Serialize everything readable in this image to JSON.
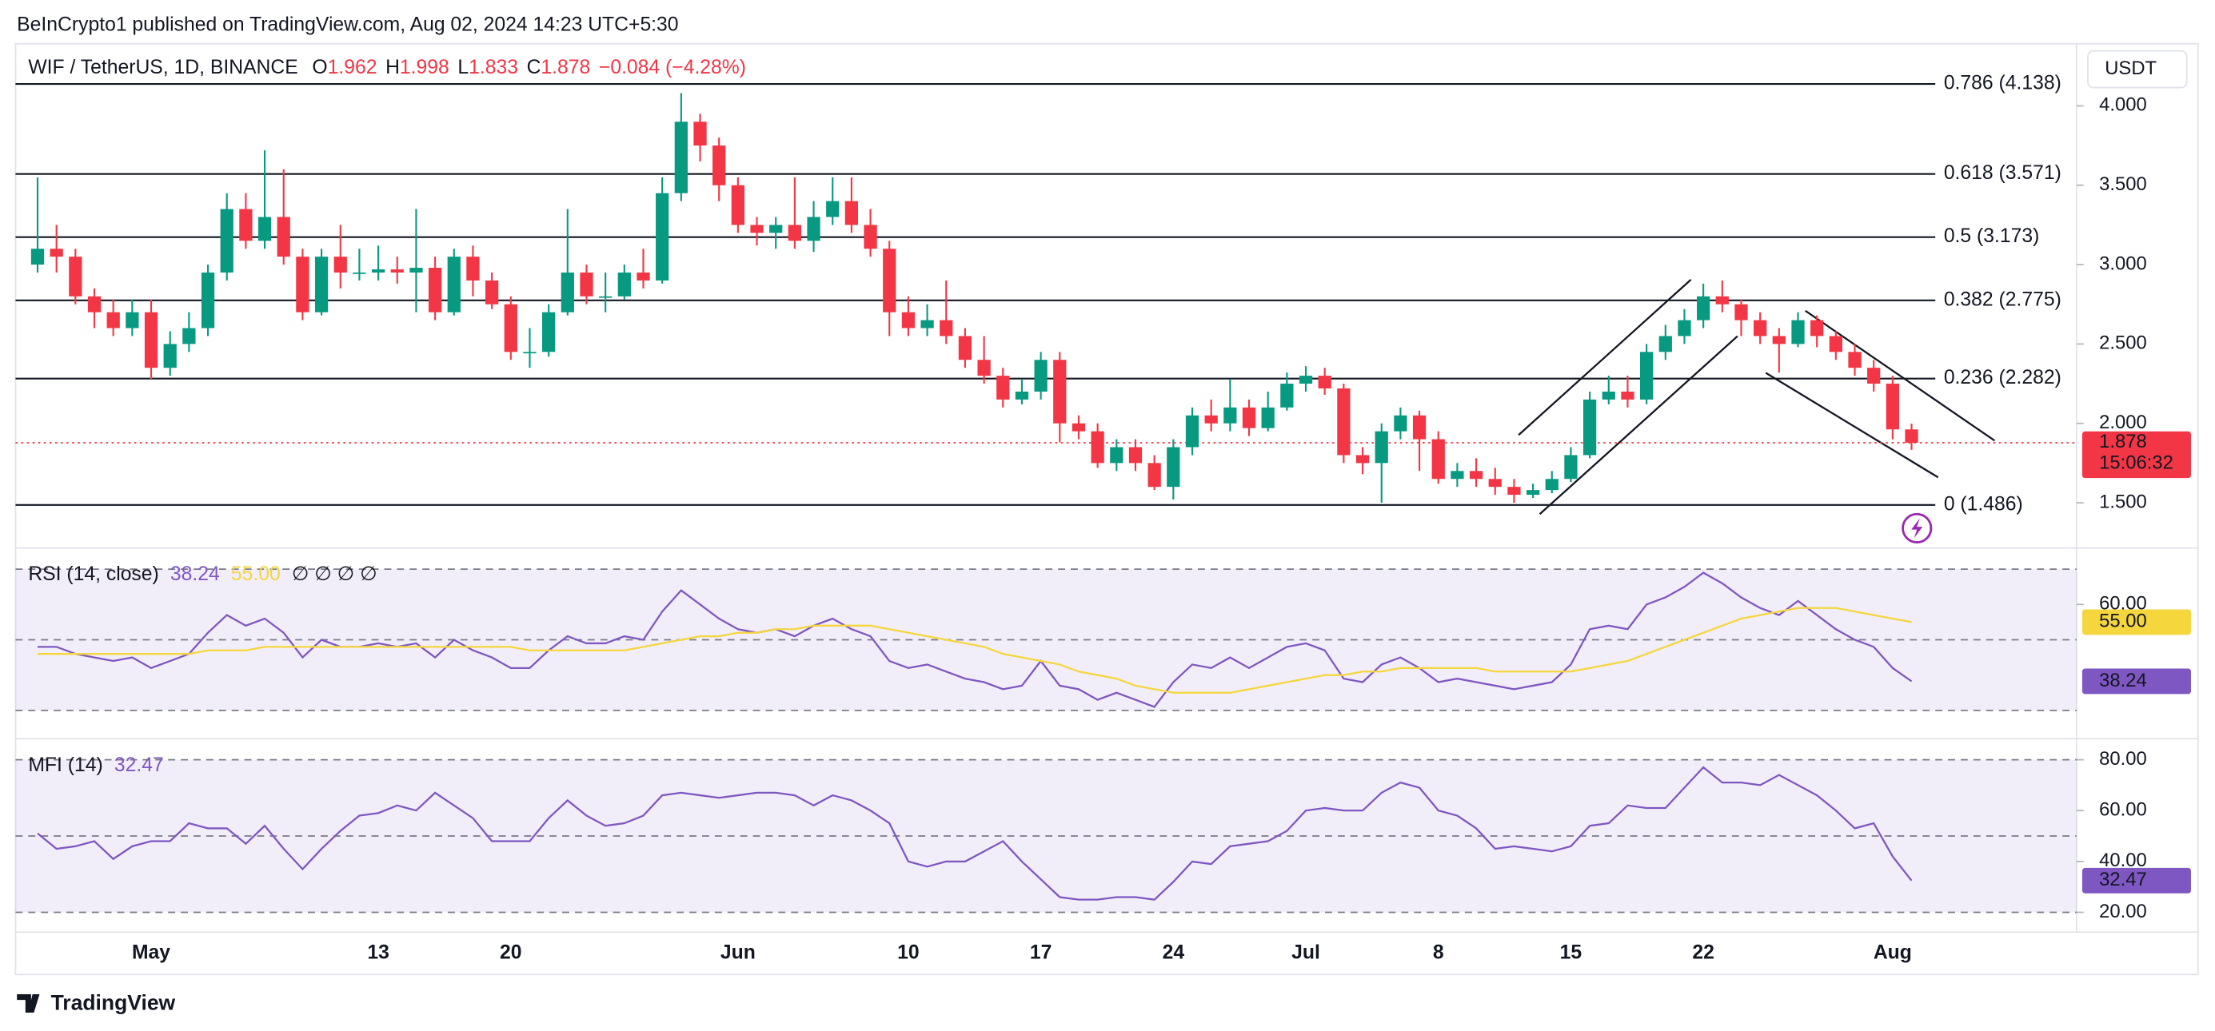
{
  "header": "BeInCrypto1 published on TradingView.com, Aug 02, 2024 14:23 UTC+5:30",
  "footer": "TradingView",
  "chart_data": {
    "type": "candlestick",
    "symbol": "WIF / TetherUS, 1D, BINANCE",
    "ohlc_labels": [
      "O",
      "H",
      "L",
      "C"
    ],
    "change_label": "−0.084 (−4.28%)",
    "currency": "USDT",
    "countdown": "15:06:32",
    "up_color": "#089981",
    "down_color": "#f23645",
    "categories": [
      null,
      null,
      null,
      null,
      null,
      null,
      "May",
      null,
      null,
      null,
      null,
      null,
      null,
      null,
      null,
      null,
      null,
      null,
      "13",
      null,
      null,
      null,
      null,
      null,
      null,
      "20",
      null,
      null,
      null,
      null,
      null,
      null,
      null,
      null,
      null,
      null,
      null,
      "Jun",
      null,
      null,
      null,
      null,
      null,
      null,
      null,
      null,
      "10",
      null,
      null,
      null,
      null,
      null,
      null,
      "17",
      null,
      null,
      null,
      null,
      null,
      null,
      "24",
      null,
      null,
      null,
      null,
      null,
      null,
      "Jul",
      null,
      null,
      null,
      null,
      null,
      null,
      "8",
      null,
      null,
      null,
      null,
      null,
      null,
      "15",
      null,
      null,
      null,
      null,
      null,
      null,
      "22",
      null,
      null,
      null,
      null,
      null,
      null,
      null,
      null,
      null,
      "Aug",
      null
    ],
    "open": [
      3.0,
      3.1,
      3.05,
      2.8,
      2.7,
      2.6,
      2.7,
      2.35,
      2.5,
      2.6,
      2.95,
      3.35,
      3.15,
      3.3,
      3.05,
      2.7,
      3.05,
      2.95,
      2.95,
      2.97,
      2.95,
      2.98,
      2.7,
      3.05,
      2.9,
      2.75,
      2.45,
      2.45,
      2.7,
      2.95,
      2.8,
      2.8,
      2.95,
      2.9,
      3.45,
      3.9,
      3.75,
      3.5,
      3.25,
      3.2,
      3.25,
      3.15,
      3.3,
      3.4,
      3.25,
      3.1,
      2.7,
      2.6,
      2.65,
      2.55,
      2.4,
      2.3,
      2.15,
      2.2,
      2.4,
      2.0,
      1.95,
      1.75,
      1.85,
      1.75,
      1.6,
      1.85,
      2.05,
      2.0,
      2.1,
      1.97,
      2.1,
      2.25,
      2.3,
      2.22,
      1.8,
      1.75,
      1.95,
      2.05,
      1.9,
      1.65,
      1.7,
      1.65,
      1.6,
      1.55,
      1.58,
      1.65,
      1.8,
      2.15,
      2.2,
      2.15,
      2.45,
      2.55,
      2.65,
      2.8,
      2.75,
      2.65,
      2.55,
      2.5,
      2.65,
      2.55,
      2.45,
      2.35,
      2.25,
      1.962
    ],
    "high": [
      3.55,
      3.25,
      3.1,
      2.85,
      2.78,
      2.78,
      2.78,
      2.58,
      2.7,
      3.0,
      3.45,
      3.45,
      3.72,
      3.6,
      3.1,
      3.1,
      3.25,
      3.1,
      3.12,
      3.05,
      3.35,
      3.05,
      3.1,
      3.12,
      2.95,
      2.8,
      2.6,
      2.75,
      3.35,
      3.0,
      2.95,
      3.0,
      3.1,
      3.55,
      4.08,
      3.95,
      3.8,
      3.55,
      3.3,
      3.3,
      3.55,
      3.4,
      3.55,
      3.55,
      3.35,
      3.15,
      2.8,
      2.75,
      2.9,
      2.6,
      2.55,
      2.35,
      2.28,
      2.45,
      2.45,
      2.05,
      2.0,
      1.9,
      1.9,
      1.8,
      1.9,
      2.1,
      2.15,
      2.28,
      2.15,
      2.2,
      2.32,
      2.36,
      2.35,
      2.25,
      1.85,
      2.0,
      2.1,
      2.08,
      1.95,
      1.75,
      1.78,
      1.72,
      1.65,
      1.62,
      1.7,
      1.85,
      2.2,
      2.3,
      2.3,
      2.5,
      2.62,
      2.72,
      2.88,
      2.9,
      2.78,
      2.7,
      2.6,
      2.7,
      2.68,
      2.58,
      2.5,
      2.4,
      2.3,
      1.998
    ],
    "low": [
      2.95,
      2.95,
      2.75,
      2.6,
      2.55,
      2.55,
      2.28,
      2.3,
      2.45,
      2.55,
      2.9,
      3.1,
      3.1,
      3.0,
      2.65,
      2.68,
      2.85,
      2.9,
      2.9,
      2.88,
      2.7,
      2.65,
      2.68,
      2.8,
      2.72,
      2.4,
      2.35,
      2.42,
      2.68,
      2.75,
      2.7,
      2.78,
      2.85,
      2.88,
      3.4,
      3.65,
      3.4,
      3.2,
      3.12,
      3.1,
      3.1,
      3.08,
      3.25,
      3.2,
      3.05,
      2.55,
      2.55,
      2.55,
      2.5,
      2.35,
      2.25,
      2.1,
      2.12,
      2.15,
      1.88,
      1.9,
      1.72,
      1.7,
      1.7,
      1.58,
      1.52,
      1.8,
      1.95,
      1.95,
      1.92,
      1.95,
      2.08,
      2.2,
      2.18,
      1.75,
      1.68,
      1.5,
      1.9,
      1.7,
      1.62,
      1.6,
      1.6,
      1.55,
      1.5,
      1.53,
      1.56,
      1.63,
      1.78,
      2.12,
      2.1,
      2.12,
      2.4,
      2.5,
      2.6,
      2.7,
      2.55,
      2.5,
      2.32,
      2.48,
      2.48,
      2.4,
      2.3,
      2.2,
      1.9,
      1.833
    ],
    "close": [
      3.1,
      3.05,
      2.8,
      2.7,
      2.6,
      2.7,
      2.35,
      2.5,
      2.6,
      2.95,
      3.35,
      3.15,
      3.3,
      3.05,
      2.7,
      3.05,
      2.95,
      2.95,
      2.97,
      2.95,
      2.98,
      2.7,
      3.05,
      2.9,
      2.75,
      2.45,
      2.45,
      2.7,
      2.95,
      2.8,
      2.8,
      2.95,
      2.9,
      3.45,
      3.9,
      3.75,
      3.5,
      3.25,
      3.2,
      3.25,
      3.15,
      3.3,
      3.4,
      3.25,
      3.1,
      2.7,
      2.6,
      2.65,
      2.55,
      2.4,
      2.3,
      2.15,
      2.2,
      2.4,
      2.0,
      1.95,
      1.75,
      1.85,
      1.75,
      1.6,
      1.85,
      2.05,
      2.0,
      2.1,
      1.97,
      2.1,
      2.25,
      2.3,
      2.22,
      1.8,
      1.75,
      1.95,
      2.05,
      1.9,
      1.65,
      1.7,
      1.65,
      1.6,
      1.55,
      1.58,
      1.65,
      1.8,
      2.15,
      2.2,
      2.15,
      2.45,
      2.55,
      2.65,
      2.8,
      2.75,
      2.65,
      2.55,
      2.5,
      2.65,
      2.55,
      2.45,
      2.35,
      2.25,
      1.962,
      1.878
    ],
    "ylim": [
      1.215,
      4.391
    ],
    "yticks": [
      {
        "value": 1.5,
        "label": "1.500"
      },
      {
        "value": 2,
        "label": "2.000"
      },
      {
        "value": 2.5,
        "label": "2.500"
      },
      {
        "value": 3,
        "label": "3.000"
      },
      {
        "value": 3.5,
        "label": "3.500"
      },
      {
        "value": 4,
        "label": "4.000"
      }
    ],
    "fib_levels": [
      {
        "value": 4.138,
        "label": "0.786 (4.138)"
      },
      {
        "value": 3.571,
        "label": "0.618 (3.571)"
      },
      {
        "value": 3.173,
        "label": "0.5 (3.173)"
      },
      {
        "value": 2.775,
        "label": "0.382 (2.775)"
      },
      {
        "value": 2.282,
        "label": "0.236 (2.282)"
      },
      {
        "value": 1.486,
        "label": "0 (1.486)"
      }
    ],
    "indicators": [
      {
        "type": "line",
        "title": "RSI (14, close)",
        "extra": "∅ ∅ ∅ ∅",
        "ylim": [
          22,
          76
        ],
        "bands": [
          70,
          50,
          30
        ],
        "yticks": [
          {
            "value": 60,
            "label": "60.00"
          }
        ],
        "series": [
          {
            "color": "#7e57c2",
            "values": [
              48,
              48,
              46,
              45,
              44,
              45,
              42,
              44,
              46,
              52,
              57,
              54,
              56,
              52,
              45,
              50,
              48,
              48,
              49,
              48,
              49,
              45,
              50,
              47,
              45,
              42,
              42,
              47,
              51,
              49,
              49,
              51,
              50,
              58,
              64,
              60,
              56,
              53,
              52,
              53,
              51,
              54,
              56,
              53,
              51,
              44,
              42,
              43,
              41,
              39,
              38,
              36,
              37,
              44,
              37,
              36,
              33,
              35,
              33,
              31,
              38,
              43,
              42,
              45,
              42,
              45,
              48,
              49,
              47,
              39,
              38,
              43,
              45,
              42,
              38,
              39,
              38,
              37,
              36,
              37,
              38,
              43,
              53,
              54,
              53,
              60,
              62,
              65,
              69,
              66,
              62,
              59,
              57,
              61,
              57,
              53,
              50,
              48,
              42,
              38.24
            ]
          },
          {
            "color": "#f5d63d",
            "last_label": "55.00",
            "values": [
              46,
              46,
              46,
              46,
              46,
              46,
              46,
              46,
              46,
              47,
              47,
              47,
              48,
              48,
              48,
              48,
              48,
              48,
              48,
              48,
              48,
              48,
              48,
              48,
              48,
              48,
              47,
              47,
              47,
              47,
              47,
              47,
              48,
              49,
              50,
              51,
              51,
              52,
              52,
              53,
              53,
              54,
              54,
              54,
              54,
              53,
              52,
              51,
              50,
              49,
              48,
              46,
              45,
              44,
              43,
              41,
              40,
              39,
              37,
              36,
              35,
              35,
              35,
              35,
              36,
              37,
              38,
              39,
              40,
              40,
              41,
              41,
              42,
              42,
              42,
              42,
              42,
              41,
              41,
              41,
              41,
              41,
              42,
              43,
              44,
              46,
              48,
              50,
              52,
              54,
              56,
              57,
              58,
              59,
              59,
              59,
              58,
              57,
              56,
              55
            ]
          }
        ]
      },
      {
        "type": "line",
        "title": "MFI (14)",
        "ylim": [
          12.2,
          88.3
        ],
        "bands": [
          80,
          50,
          20
        ],
        "yticks": [
          {
            "value": 20,
            "label": "20.00"
          },
          {
            "value": 40,
            "label": "40.00"
          },
          {
            "value": 60,
            "label": "60.00"
          },
          {
            "value": 80,
            "label": "80.00"
          }
        ],
        "series": [
          {
            "color": "#7e57c2",
            "values": [
              51,
              45,
              46,
              48,
              41,
              46,
              48,
              48,
              55,
              53,
              53,
              47,
              54,
              45,
              37,
              45,
              52,
              58,
              59,
              62,
              60,
              67,
              62,
              57,
              48,
              48,
              48,
              57,
              64,
              58,
              54,
              55,
              58,
              66,
              67,
              66,
              65,
              66,
              67,
              67,
              66,
              62,
              66,
              64,
              60,
              55,
              40,
              38,
              40,
              40,
              44,
              48,
              40,
              33,
              26,
              25,
              25,
              26,
              26,
              25,
              32,
              40,
              39,
              46,
              47,
              48,
              52,
              60,
              61,
              60,
              60,
              67,
              71,
              69,
              60,
              58,
              53,
              45,
              46,
              45,
              44,
              46,
              54,
              55,
              62,
              61,
              61,
              69,
              77,
              71,
              71,
              70,
              74,
              70,
              66,
              60,
              53,
              55,
              42,
              32.47
            ]
          }
        ]
      }
    ]
  }
}
